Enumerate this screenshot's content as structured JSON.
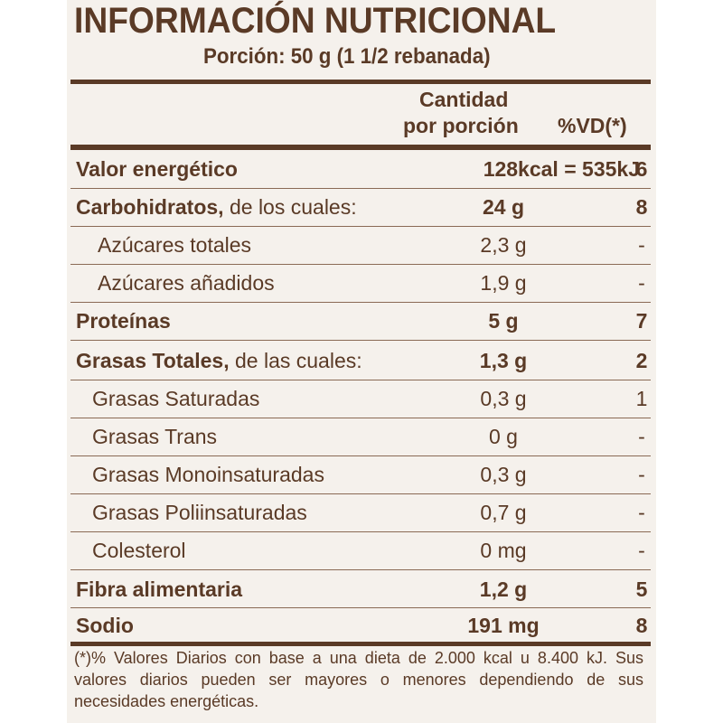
{
  "title": "INFORMACIÓN NUTRICIONAL",
  "serving": "Porción: 50 g (1 1/2 rebanada)",
  "header": {
    "amount_line1": "Cantidad",
    "amount_line2": "por porción",
    "vd": "%VD(*)"
  },
  "rows": [
    {
      "name": "Valor energético",
      "suffix": "",
      "amount": "128kcal = 535kJ",
      "vd": "6"
    },
    {
      "name": "Carbohidratos,",
      "suffix": " de los cuales:",
      "amount": "24 g",
      "vd": "8"
    },
    {
      "name": "Azúcares totales",
      "suffix": "",
      "amount": "2,3 g",
      "vd": "-"
    },
    {
      "name": "Azúcares añadidos",
      "suffix": "",
      "amount": "1,9 g",
      "vd": "-"
    },
    {
      "name": "Proteínas",
      "suffix": "",
      "amount": "5 g",
      "vd": "7"
    },
    {
      "name": "Grasas Totales,",
      "suffix": " de las cuales:",
      "amount": "1,3 g",
      "vd": "2"
    },
    {
      "name": "Grasas Saturadas",
      "suffix": "",
      "amount": "0,3 g",
      "vd": "1"
    },
    {
      "name": "Grasas Trans",
      "suffix": "",
      "amount": "0 g",
      "vd": "-"
    },
    {
      "name": "Grasas Monoinsaturadas",
      "suffix": "",
      "amount": "0,3 g",
      "vd": "-"
    },
    {
      "name": "Grasas Poliinsaturadas",
      "suffix": "",
      "amount": "0,7 g",
      "vd": "-"
    },
    {
      "name": "Colesterol",
      "suffix": "",
      "amount": "0 mg",
      "vd": "-"
    },
    {
      "name": "Fibra alimentaria",
      "suffix": "",
      "amount": "1,2 g",
      "vd": "5"
    },
    {
      "name": "Sodio",
      "suffix": "",
      "amount": "191 mg",
      "vd": "8"
    }
  ],
  "footnote": "(*)% Valores Diarios con base a una dieta de 2.000 kcal u 8.400 kJ. Sus valores diarios pueden ser mayores o menores dependiendo de sus necesidades energéticas.",
  "colors": {
    "text": "#5a3a26",
    "background": "#f5f1ec"
  }
}
